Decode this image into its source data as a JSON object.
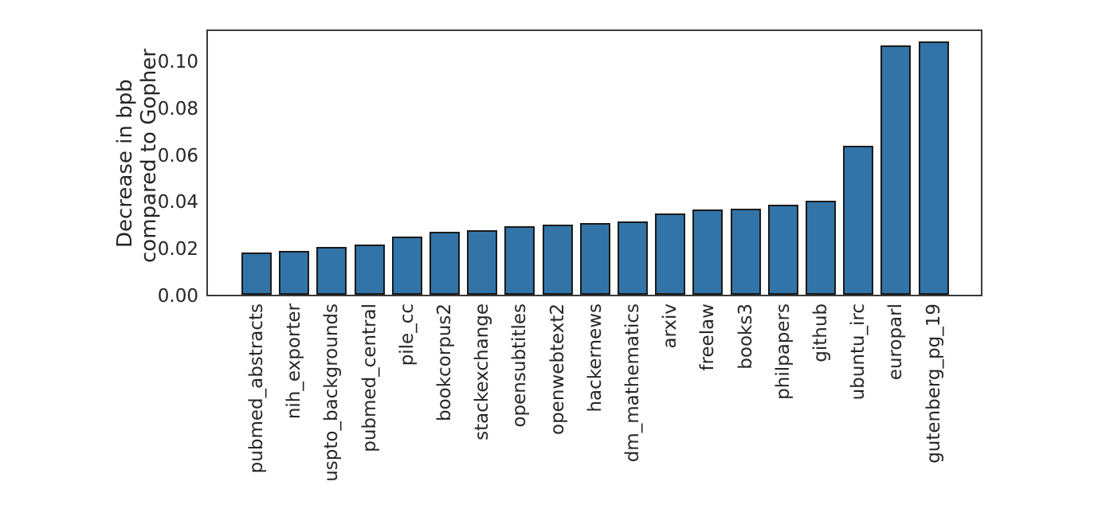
{
  "figure": {
    "background": "#ffffff"
  },
  "chart_data": {
    "type": "bar",
    "title": "",
    "xlabel": "",
    "ylabel": "Decrease in bpb\ncompared to Gopher",
    "ylabel_lines": [
      "Decrease in bpb",
      "compared to Gopher"
    ],
    "categories": [
      "pubmed_abstracts",
      "nih_exporter",
      "uspto_backgrounds",
      "pubmed_central",
      "pile_cc",
      "bookcorpus2",
      "stackexchange",
      "opensubtitles",
      "openwebtext2",
      "hackernews",
      "dm_mathematics",
      "arxiv",
      "freelaw",
      "books3",
      "philpapers",
      "github",
      "ubuntu_irc",
      "europarl",
      "gutenberg_pg_19"
    ],
    "values": [
      0.0182,
      0.0188,
      0.0205,
      0.0213,
      0.0247,
      0.0269,
      0.0276,
      0.0292,
      0.0301,
      0.0306,
      0.0312,
      0.0348,
      0.0365,
      0.0368,
      0.0386,
      0.04,
      0.0637,
      0.1065,
      0.1082
    ],
    "yticks": [
      0.0,
      0.02,
      0.04,
      0.06,
      0.08,
      0.1
    ],
    "ytick_labels": [
      "0.00",
      "0.02",
      "0.04",
      "0.06",
      "0.08",
      "0.10"
    ],
    "ylim": [
      0,
      0.114
    ],
    "grid": false,
    "legend": null,
    "bar_color": "#3274a8",
    "bar_edge_color": "#1a1a1a",
    "spine_color": "#3a3a3a",
    "text_color": "#262626"
  }
}
